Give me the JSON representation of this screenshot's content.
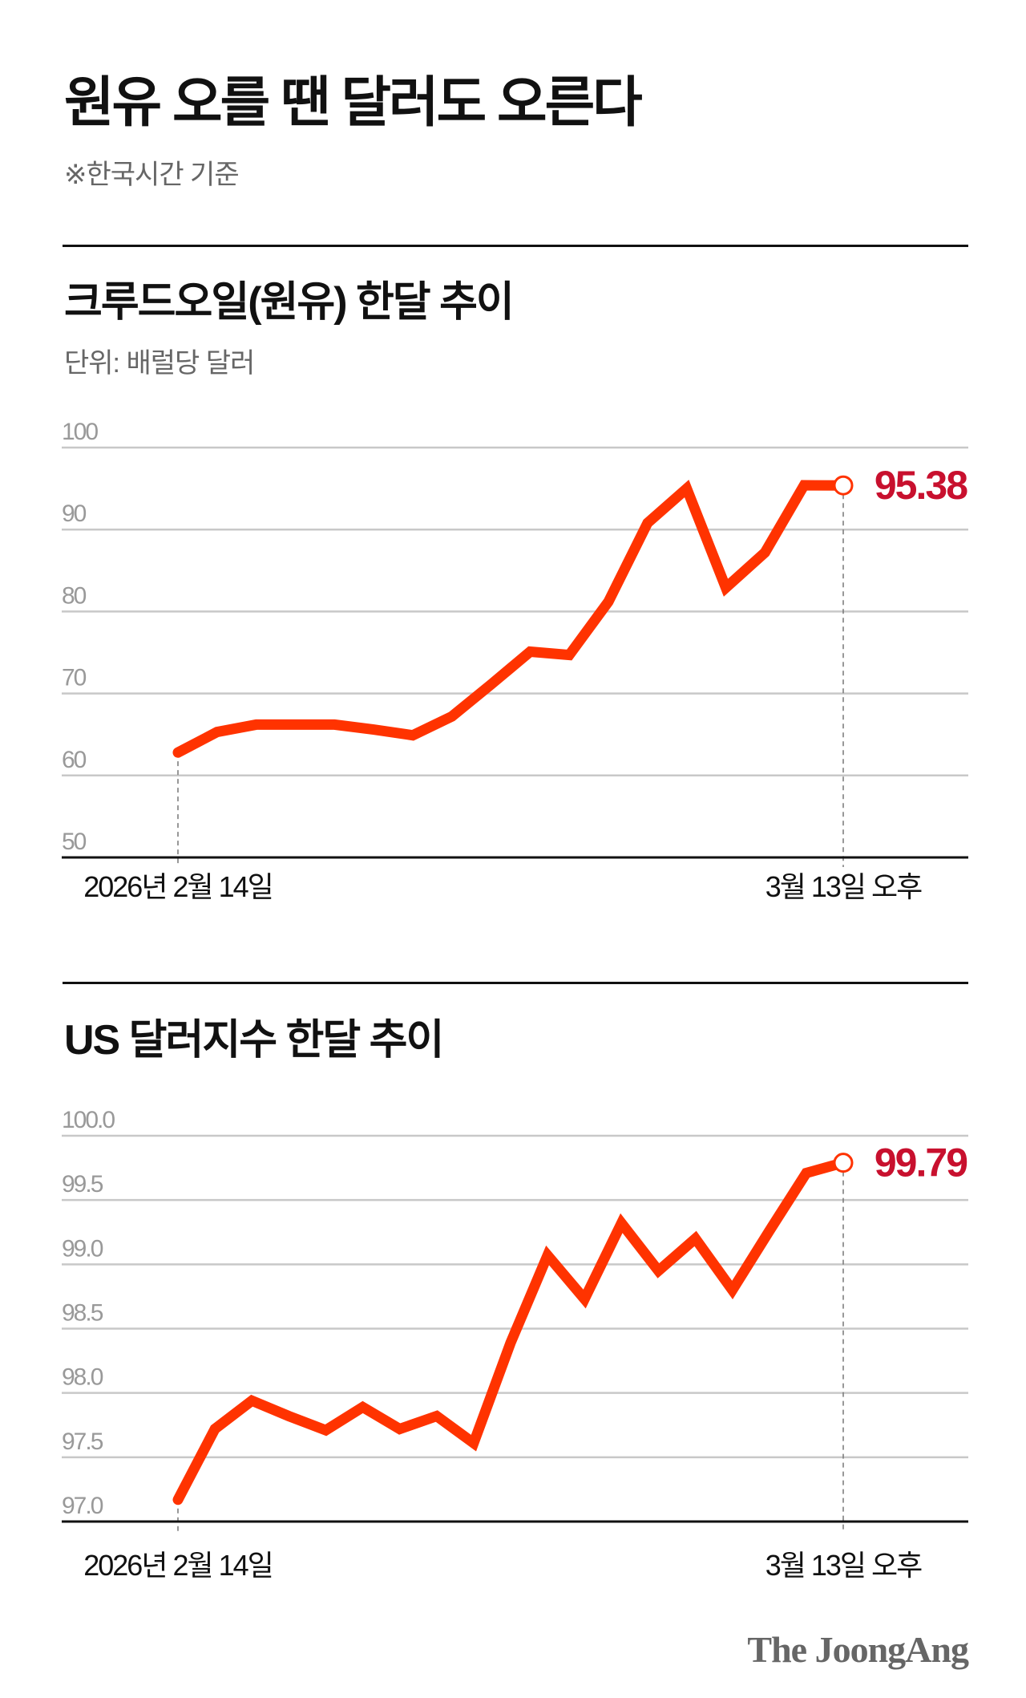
{
  "title": "원유 오를 땐 달러도 오른다",
  "note": "※한국시간 기준",
  "logo": "The JoongAng",
  "colors": {
    "line": "#ff3300",
    "value_label": "#c8102e",
    "grid": "#c8c8c8",
    "tick_label": "#999999",
    "axis": "#111111"
  },
  "chart_data": [
    {
      "type": "line",
      "title": "크루드오일(원유) 한달 추이",
      "unit": "단위: 배럴당 달러",
      "ylim": [
        50,
        100
      ],
      "yticks": [
        100,
        90,
        80,
        70,
        60,
        50
      ],
      "ytick_labels": [
        "100",
        "90",
        "80",
        "70",
        "60",
        "50"
      ],
      "x_start_label": "2026년 2월 14일",
      "x_end_label": "3월 13일 오후",
      "grid": true,
      "values": [
        62.8,
        65.3,
        66.2,
        66.2,
        66.2,
        65.6,
        64.9,
        67.2,
        71.1,
        75.1,
        74.7,
        81.2,
        90.8,
        95.0,
        82.9,
        87.2,
        95.4,
        95.38
      ],
      "last_value_label": "95.38"
    },
    {
      "type": "line",
      "title": "US 달러지수 한달 추이",
      "ylim": [
        97.0,
        100.0
      ],
      "yticks": [
        100.0,
        99.5,
        99.0,
        98.5,
        98.0,
        97.5,
        97.0
      ],
      "ytick_labels": [
        "100.0",
        "99.5",
        "99.0",
        "98.5",
        "98.0",
        "97.5",
        "97.0"
      ],
      "x_start_label": "2026년 2월 14일",
      "x_end_label": "3월 13일 오후",
      "grid": true,
      "values": [
        97.17,
        97.72,
        97.94,
        97.82,
        97.71,
        97.89,
        97.72,
        97.82,
        97.61,
        98.39,
        99.07,
        98.73,
        99.32,
        98.95,
        99.2,
        98.8,
        99.26,
        99.71,
        99.79
      ],
      "last_value_label": "99.79"
    }
  ]
}
